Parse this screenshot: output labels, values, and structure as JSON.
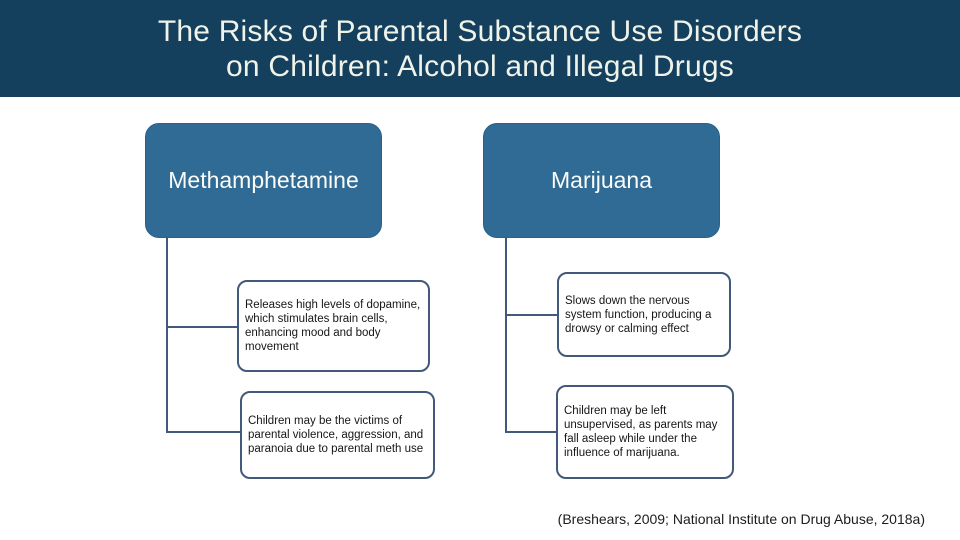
{
  "header": {
    "title_line1": "The Risks of Parental Substance Use Disorders",
    "title_line2": "on Children: Alcohol and Illegal Drugs"
  },
  "diagram": {
    "columns": [
      {
        "parent": "Methamphetamine",
        "children": [
          "Releases high levels of dopamine,\nwhich stimulates brain cells,\nenhancing mood and body\nmovement",
          "Children may be the victims of\nparental violence, aggression, and\nparanoia due to parental meth use"
        ]
      },
      {
        "parent": "Marijuana",
        "children": [
          "Slows down the nervous\nsystem function, producing a\ndrowsy or calming effect",
          "Children may be left\nunsupervised, as parents may\nfall asleep while under the\ninfluence of marijuana."
        ]
      }
    ]
  },
  "footer": {
    "citation": "(Breshears, 2009; National Institute on Drug Abuse, 2018a)"
  },
  "colors": {
    "header_bg": "#14405E",
    "title_text": "#EFF3EA",
    "topic_box_bg": "#2F6B95",
    "topic_box_text": "#FBFCFA",
    "connector_line": "#42597B",
    "detail_box_border": "#42597B",
    "detail_box_bg": "#FFFFFF",
    "detail_text": "#161616",
    "background": "#FFFFFF"
  }
}
